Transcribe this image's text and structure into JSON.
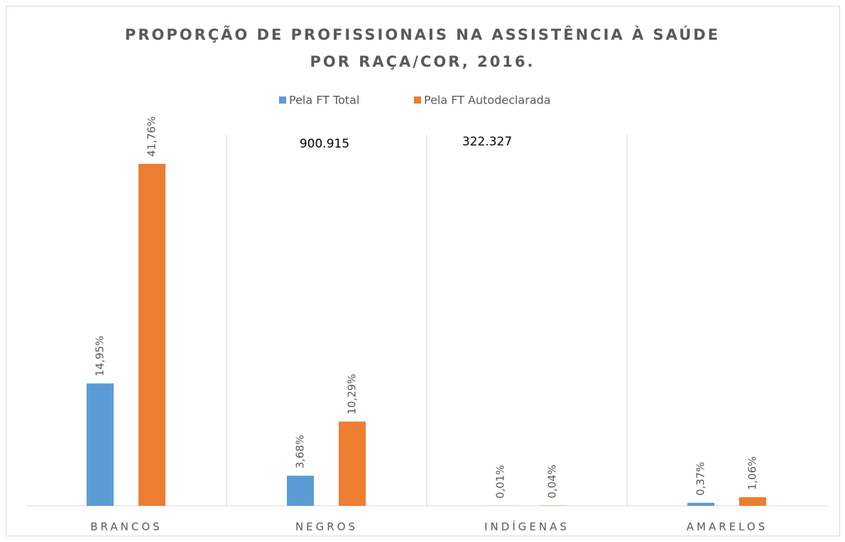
{
  "chart_data": {
    "type": "bar",
    "title": [
      "PROPORÇÃO DE PROFISSIONAIS NA ASSISTÊNCIA À SAÚDE",
      "POR RAÇA/COR, 2016."
    ],
    "categories": [
      "BRANCOS",
      "NEGROS",
      "INDÍGENAS",
      "AMARELOS"
    ],
    "series": [
      {
        "name": "Pela FT Total",
        "color": "#5b9bd5",
        "values": [
          14.95,
          3.68,
          0.01,
          0.37
        ],
        "value_labels": [
          "14,95%",
          "3,68%",
          "0,01%",
          "0,37%"
        ]
      },
      {
        "name": "Pela FT Autodeclarada",
        "color": "#ed7d31",
        "values": [
          41.76,
          10.29,
          0.04,
          1.06
        ],
        "value_labels": [
          "41,76%",
          "10,29%",
          "0,04%",
          "1,06%"
        ]
      }
    ],
    "annotations": [
      "900.915",
      "322.327"
    ],
    "legend": "top"
  }
}
